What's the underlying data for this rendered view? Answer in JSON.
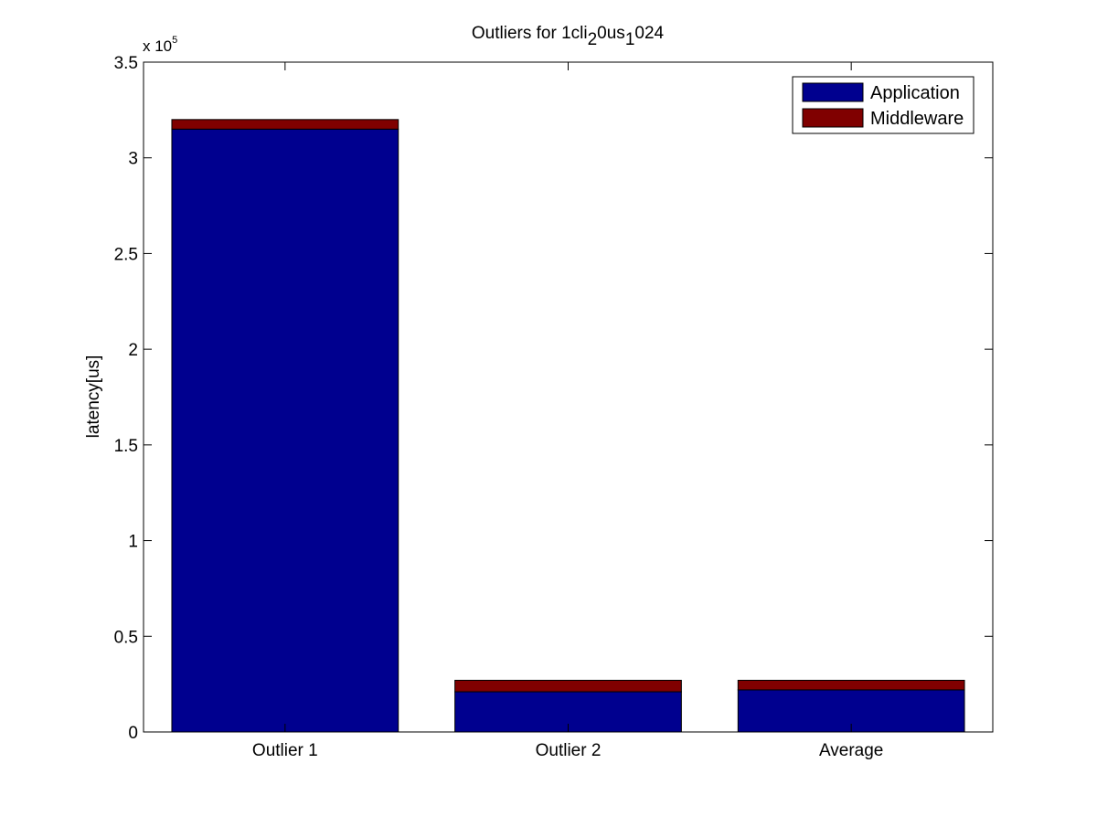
{
  "chart_data": {
    "type": "bar",
    "stacked": true,
    "title_parts": [
      {
        "text": "Outliers for 1cli",
        "sub": false
      },
      {
        "text": "2",
        "sub": true
      },
      {
        "text": "0us",
        "sub": false
      },
      {
        "text": "1",
        "sub": true
      },
      {
        "text": "024",
        "sub": false
      }
    ],
    "ylabel": "latency[us]",
    "xlabel": "",
    "categories": [
      "Outlier 1",
      "Outlier 2",
      "Average"
    ],
    "series": [
      {
        "name": "Application",
        "color": "#00008f",
        "values": [
          315000,
          21000,
          22000
        ]
      },
      {
        "name": "Middleware",
        "color": "#800000",
        "values": [
          5000,
          6000,
          5000
        ]
      }
    ],
    "ylim": [
      0,
      350000
    ],
    "y_scale_exponent": {
      "base": "x 10",
      "power": "5"
    },
    "yticks": [
      0,
      50000,
      100000,
      150000,
      200000,
      250000,
      300000,
      350000
    ],
    "ytick_labels": [
      "0",
      "0.5",
      "1",
      "1.5",
      "2",
      "2.5",
      "3",
      "3.5"
    ],
    "legend_position": "top-right",
    "grid": false
  }
}
